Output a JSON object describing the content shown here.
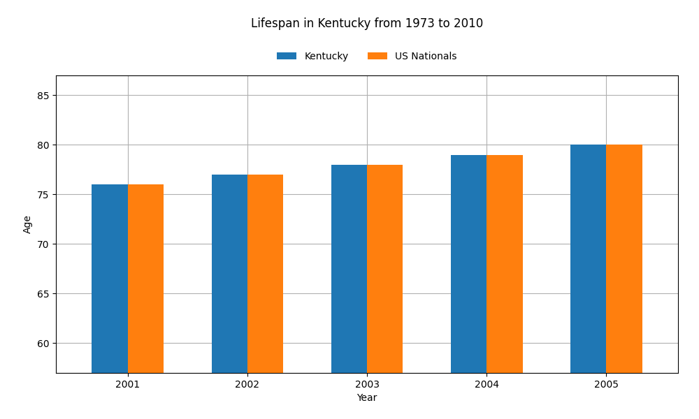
{
  "chart_data": {
    "type": "bar",
    "title": "Lifespan in Kentucky from 1973 to 2010",
    "xlabel": "Year",
    "ylabel": "Age",
    "categories": [
      "2001",
      "2002",
      "2003",
      "2004",
      "2005"
    ],
    "series": [
      {
        "name": "Kentucky",
        "values": [
          76,
          77,
          78,
          79,
          80
        ]
      },
      {
        "name": "US Nationals",
        "values": [
          76,
          77,
          78,
          79,
          80
        ]
      }
    ],
    "ylim": [
      57,
      87
    ],
    "yticks": [
      60,
      65,
      70,
      75,
      80,
      85
    ],
    "grid": true,
    "legend": "upper center"
  }
}
